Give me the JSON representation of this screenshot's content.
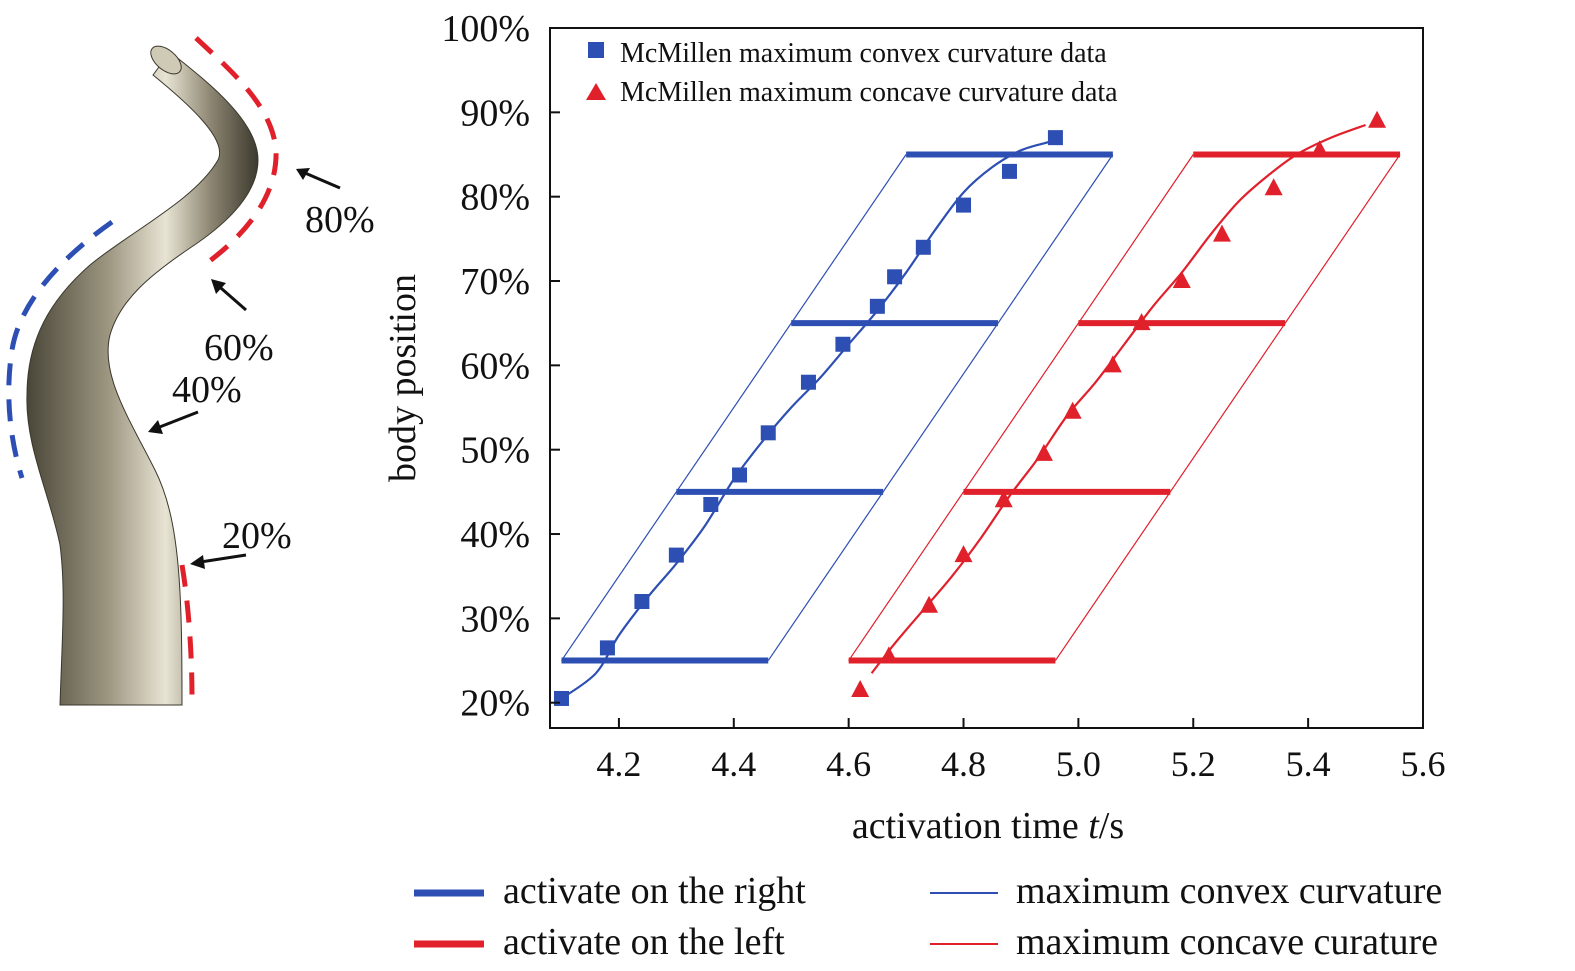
{
  "illustration": {
    "labels": [
      "80%",
      "60%",
      "40%",
      "20%"
    ]
  },
  "legend_top": [
    {
      "marker": "square",
      "color": "#2d4fb3",
      "label": "McMillen maximum convex curvature data"
    },
    {
      "marker": "triangle",
      "color": "#e0202a",
      "label": "McMillen maximum concave curvature data"
    }
  ],
  "legend_bottom": [
    {
      "style": "thick",
      "color": "#2d4fb3",
      "label": "activate on the right"
    },
    {
      "style": "thin",
      "color": "#2d4fb3",
      "label": "maximum convex curvature"
    },
    {
      "style": "thick",
      "color": "#e0202a",
      "label": "activate on the left"
    },
    {
      "style": "thin",
      "color": "#e0202a",
      "label": "maximum concave curature"
    }
  ],
  "chart_data": {
    "type": "scatter",
    "xlabel": "activation time t/s",
    "ylabel": "body position",
    "xlim": [
      4.08,
      5.6
    ],
    "ylim": [
      17,
      100
    ],
    "xticks": [
      4.2,
      4.4,
      4.6,
      4.8,
      5.0,
      5.2,
      5.4,
      5.6
    ],
    "xtick_labels": [
      "4.2",
      "4.4",
      "4.6",
      "4.8",
      "5.0",
      "5.2",
      "5.4",
      "5.6"
    ],
    "yticks": [
      20,
      30,
      40,
      50,
      60,
      70,
      80,
      90,
      100
    ],
    "ytick_labels": [
      "20%",
      "30%",
      "40%",
      "50%",
      "60%",
      "70%",
      "80%",
      "90%",
      "100%"
    ],
    "colors": {
      "convex": "#2d4fb3",
      "concave": "#e0202a"
    },
    "convex_data": {
      "x": [
        4.1,
        4.18,
        4.24,
        4.3,
        4.36,
        4.41,
        4.46,
        4.53,
        4.59,
        4.65,
        4.68,
        4.73,
        4.8,
        4.88,
        4.96
      ],
      "y": [
        20.5,
        26.5,
        32,
        37.5,
        43.5,
        47,
        52,
        58,
        62.5,
        67,
        70.5,
        74,
        79,
        83,
        87
      ]
    },
    "concave_data": {
      "x": [
        4.62,
        4.67,
        4.74,
        4.8,
        4.87,
        4.94,
        4.99,
        5.06,
        5.11,
        5.18,
        5.25,
        5.34,
        5.42,
        5.52
      ],
      "y": [
        21.5,
        25.5,
        31.5,
        37.5,
        44,
        49.5,
        54.5,
        60,
        65,
        70,
        75.5,
        81,
        85.5,
        89
      ]
    },
    "convex_fit": {
      "x": [
        4.1,
        4.16,
        4.2,
        4.25,
        4.3,
        4.35,
        4.4,
        4.45,
        4.5,
        4.55,
        4.6,
        4.65,
        4.7,
        4.75,
        4.8,
        4.85,
        4.9,
        4.95
      ],
      "y": [
        20.5,
        23.5,
        28,
        32.5,
        36.5,
        41,
        46.5,
        51,
        55,
        58.5,
        62.5,
        66.5,
        71,
        76,
        80.5,
        83.5,
        85.5,
        86.5
      ]
    },
    "concave_fit": {
      "x": [
        4.64,
        4.68,
        4.73,
        4.78,
        4.83,
        4.88,
        4.93,
        4.98,
        5.03,
        5.08,
        5.13,
        5.18,
        5.23,
        5.28,
        5.33,
        5.38,
        5.44,
        5.5
      ],
      "y": [
        23.5,
        27,
        31,
        35,
        39.5,
        44.5,
        49,
        54,
        58,
        62.5,
        67,
        71,
        75.5,
        79.5,
        82.5,
        85,
        87,
        88.5
      ]
    },
    "activation_right": [
      {
        "x": [
          4.1,
          4.46
        ],
        "y": 25
      },
      {
        "x": [
          4.3,
          4.66
        ],
        "y": 45
      },
      {
        "x": [
          4.5,
          4.86
        ],
        "y": 65
      },
      {
        "x": [
          4.7,
          5.06
        ],
        "y": 85
      }
    ],
    "activation_left": [
      {
        "x": [
          4.6,
          4.96
        ],
        "y": 25
      },
      {
        "x": [
          4.8,
          5.16
        ],
        "y": 45
      },
      {
        "x": [
          5.0,
          5.36
        ],
        "y": 65
      },
      {
        "x": [
          5.2,
          5.56
        ],
        "y": 85
      }
    ],
    "convex_band": [
      {
        "from": [
          4.1,
          25
        ],
        "to": [
          4.7,
          85
        ]
      },
      {
        "from": [
          4.46,
          25
        ],
        "to": [
          5.06,
          85
        ]
      }
    ],
    "concave_band": [
      {
        "from": [
          4.6,
          25
        ],
        "to": [
          5.2,
          85
        ]
      },
      {
        "from": [
          4.96,
          25
        ],
        "to": [
          5.56,
          85
        ]
      }
    ]
  }
}
